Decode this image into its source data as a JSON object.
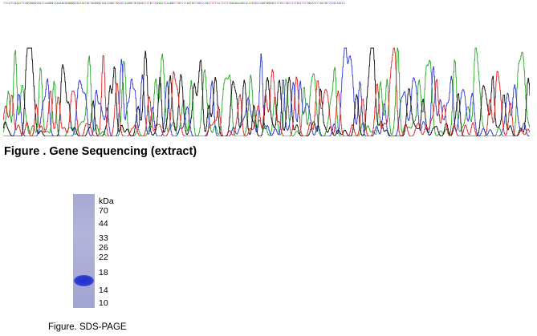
{
  "sequence_strip": {
    "text": "TCCATCCGAATTCAGCGGGGCGATCAAGGGCAAGAGCGAGGGGCGATGATGCTGAGGGCAGCCAGGCTGCGCCAAGGCTGTGAGCTCTGTTCGAGATCAAGGCTTGCCTCAGTGCTCGCCCAGCTCTTCATTCTCTGGAGAAAGCACATGCGCCAGGTGGGGCTCTGCCTGCCTCTGCCTCCTGGATCTTGATGCTCCGCAGCCC",
    "colors": {
      "A": "#1c9a1c",
      "C": "#2a2ab8",
      "G": "#111111",
      "T": "#d62020"
    }
  },
  "chromatogram": {
    "traces": [
      {
        "base": "A",
        "color": "#2aaa2a"
      },
      {
        "base": "C",
        "color": "#2e3bd0"
      },
      {
        "base": "G",
        "color": "#111111"
      },
      {
        "base": "T",
        "color": "#dd2424"
      }
    ]
  },
  "figure1": {
    "caption": "Figure . Gene Sequencing (extract)"
  },
  "gel": {
    "unit": "kDa",
    "markers": [
      {
        "label": "70",
        "kda": 70
      },
      {
        "label": "44",
        "kda": 44
      },
      {
        "label": "33",
        "kda": 33
      },
      {
        "label": "26",
        "kda": 26
      },
      {
        "label": "22",
        "kda": 22
      },
      {
        "label": "18",
        "kda": 18
      },
      {
        "label": "14",
        "kda": 14
      },
      {
        "label": "10",
        "kda": 10
      }
    ],
    "band_kda": 16,
    "lane_color": "#aeb0d8",
    "band_color": "#2233cc"
  },
  "figure2": {
    "caption": "Figure. SDS-PAGE"
  }
}
